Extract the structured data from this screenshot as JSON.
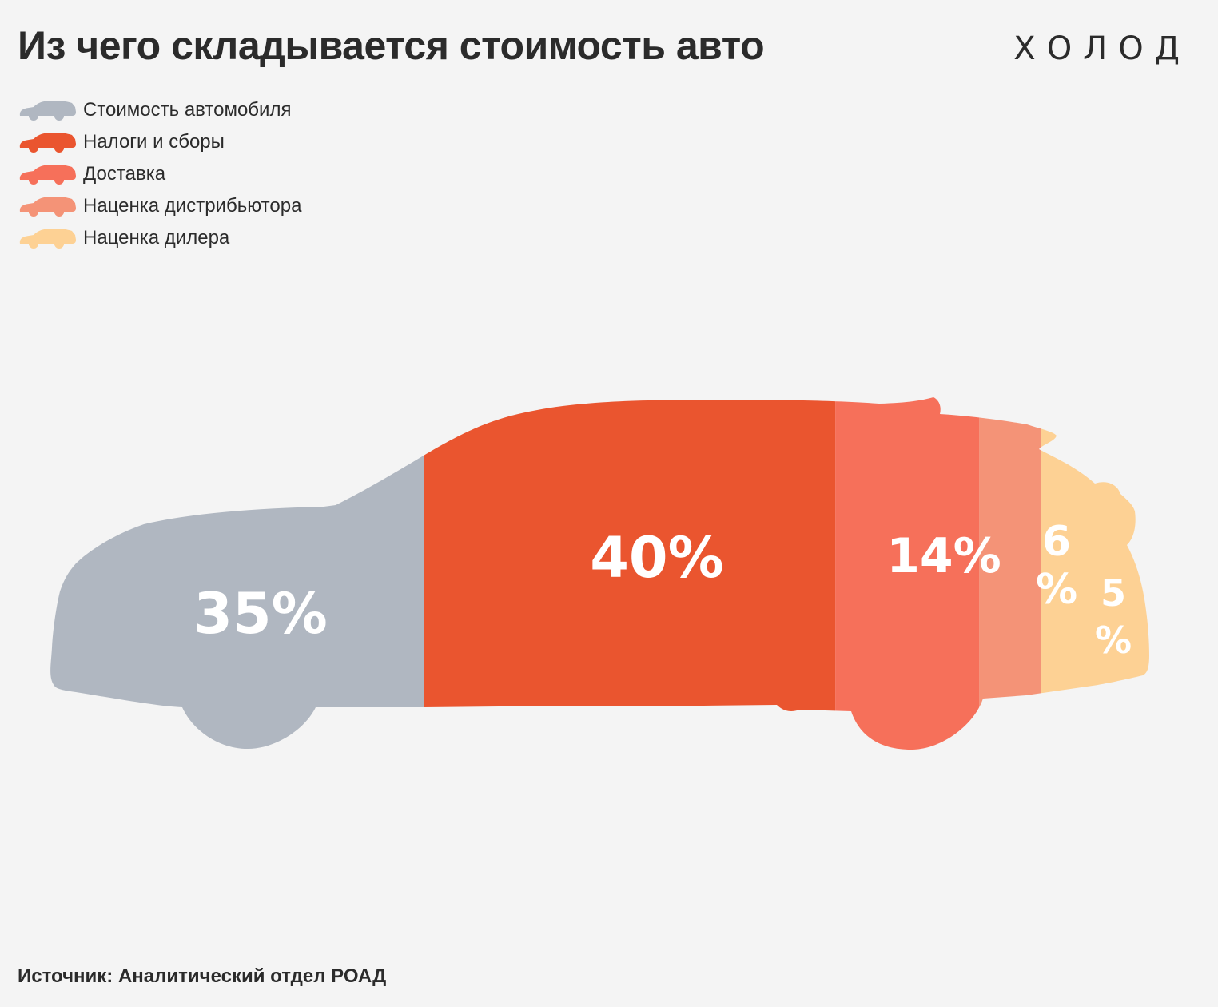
{
  "title": "Из чего складывается стоимость авто",
  "logo": "ХОЛОД",
  "source": "Источник: Аналитический отдел РОАД",
  "chart_data": {
    "type": "stacked-bar",
    "title": "Из чего складывается стоимость авто",
    "legend_position": "top-left",
    "unit": "%",
    "segments": [
      {
        "name": "Стоимость автомобиля",
        "value": 35,
        "label": "35%",
        "color": "#b0b7c1"
      },
      {
        "name": "Налоги и сборы",
        "value": 40,
        "label": "40%",
        "color": "#ea552f"
      },
      {
        "name": "Доставка",
        "value": 14,
        "label": "14%",
        "color": "#f6705a"
      },
      {
        "name": "Наценка дистрибьютора",
        "value": 6,
        "label_lines": [
          "6",
          "%"
        ],
        "color": "#f49377"
      },
      {
        "name": "Наценка дилера",
        "value": 5,
        "label_lines": [
          "5",
          "%"
        ],
        "color": "#fdd194"
      }
    ]
  }
}
